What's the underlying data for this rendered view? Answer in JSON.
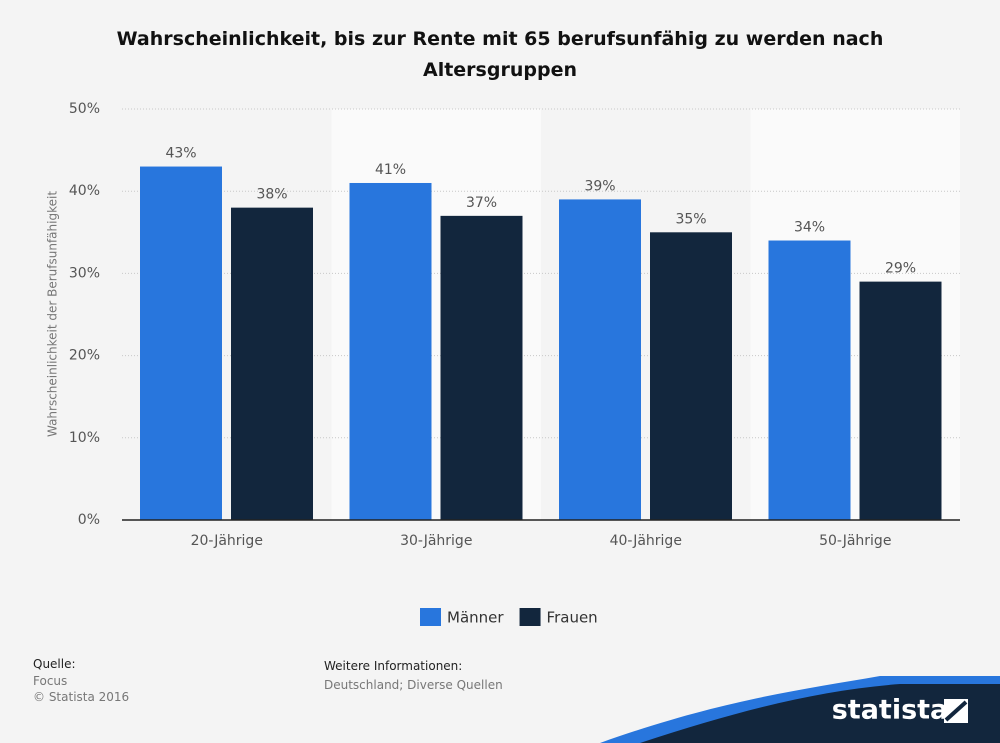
{
  "chart_data": {
    "type": "bar",
    "title": "Wahrscheinlichkeit, bis zur Rente mit 65 berufsunfähig zu werden nach Altersgruppen",
    "y_label": "Wahrscheinlichkeit der Berufsunfähigkeit",
    "categories": [
      "20-Jährige",
      "30-Jährige",
      "40-Jährige",
      "50-Jährige"
    ],
    "series": [
      {
        "name": "Männer",
        "color": "#2876dd",
        "values": [
          43,
          41,
          39,
          34
        ],
        "value_labels": [
          "43%",
          "41%",
          "39%",
          "34%"
        ]
      },
      {
        "name": "Frauen",
        "color": "#12263d",
        "values": [
          38,
          37,
          35,
          29
        ],
        "value_labels": [
          "38%",
          "37%",
          "35%",
          "29%"
        ]
      }
    ],
    "ylim": [
      0,
      50
    ],
    "yticks": [
      {
        "value": 0,
        "label": "0%"
      },
      {
        "value": 10,
        "label": "10%"
      },
      {
        "value": 20,
        "label": "20%"
      },
      {
        "value": 30,
        "label": "30%"
      },
      {
        "value": 40,
        "label": "40%"
      },
      {
        "value": 50,
        "label": "50%"
      }
    ],
    "grid": true,
    "legend": "bottom"
  },
  "footer": {
    "source_label": "Quelle:",
    "source": "Focus",
    "copyright": "© Statista 2016",
    "info_label": "Weitere Informationen:",
    "info": "Deutschland; Diverse Quellen",
    "brand": "statista"
  }
}
